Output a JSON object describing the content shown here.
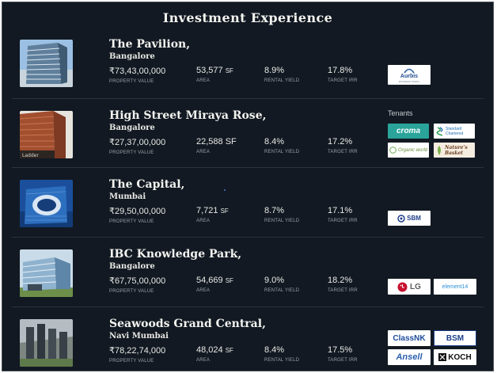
{
  "page": {
    "title": "Investment Experience"
  },
  "labels": {
    "property_value": "PROPERTY VALUE",
    "area": "AREA",
    "rental_yield": "RENTAL YIELD",
    "target_irr": "TARGET IRR",
    "tenants": "Tenants"
  },
  "properties": [
    {
      "name": "The Pavilion,",
      "city": "Bangalore",
      "value": "₹73,43,00,000",
      "area": "53,577",
      "area_unit": "SF",
      "yield": "8.9%",
      "irr": "17.8%",
      "logos": [
        {
          "name": "aurbis-logo",
          "text": "Aurbis",
          "sub": "BUSINESS PARKS"
        }
      ]
    },
    {
      "name": "High Street Miraya Rose,",
      "city": "Bangalore",
      "value": "₹27,37,00,000",
      "area": "22,588",
      "area_unit": "SF",
      "yield": "8.4%",
      "irr": "17.2%",
      "logos": [
        {
          "name": "croma-logo",
          "text": "croma"
        },
        {
          "name": "standard-chartered-logo",
          "text": "Standard Chartered"
        },
        {
          "name": "organic-world-logo",
          "text": "Organic world"
        },
        {
          "name": "natures-basket-logo",
          "text": "Nature's Basket"
        }
      ]
    },
    {
      "name": "The Capital,",
      "city": "Mumbai",
      "value": "₹29,50,00,000",
      "area": "7,721",
      "area_unit": "SF",
      "yield": "8.7%",
      "irr": "17.1%",
      "logos": [
        {
          "name": "sbm-logo",
          "text": "SBM"
        }
      ]
    },
    {
      "name": "IBC Knowledge Park,",
      "city": "Bangalore",
      "value": "₹67,75,00,000",
      "area": "54,669",
      "area_unit": "SF",
      "yield": "9.0%",
      "irr": "18.2%",
      "logos": [
        {
          "name": "lg-logo",
          "text": "LG"
        },
        {
          "name": "element14-logo",
          "text": "element14"
        }
      ]
    },
    {
      "name": "Seawoods Grand Central,",
      "city": "Navi Mumbai",
      "value": "₹78,22,74,000",
      "area": "48,024",
      "area_unit": "SF",
      "yield": "8.4%",
      "irr": "17.5%",
      "logos": [
        {
          "name": "classnk-logo",
          "text": "ClassNK"
        },
        {
          "name": "bsm-logo",
          "text": "BSM"
        },
        {
          "name": "ansell-logo",
          "text": "Ansell"
        },
        {
          "name": "koch-logo",
          "text": "KOCH"
        }
      ]
    }
  ],
  "colors": {
    "background": "#121922",
    "text": "#f2f2ee",
    "muted": "#9aa0a8"
  }
}
